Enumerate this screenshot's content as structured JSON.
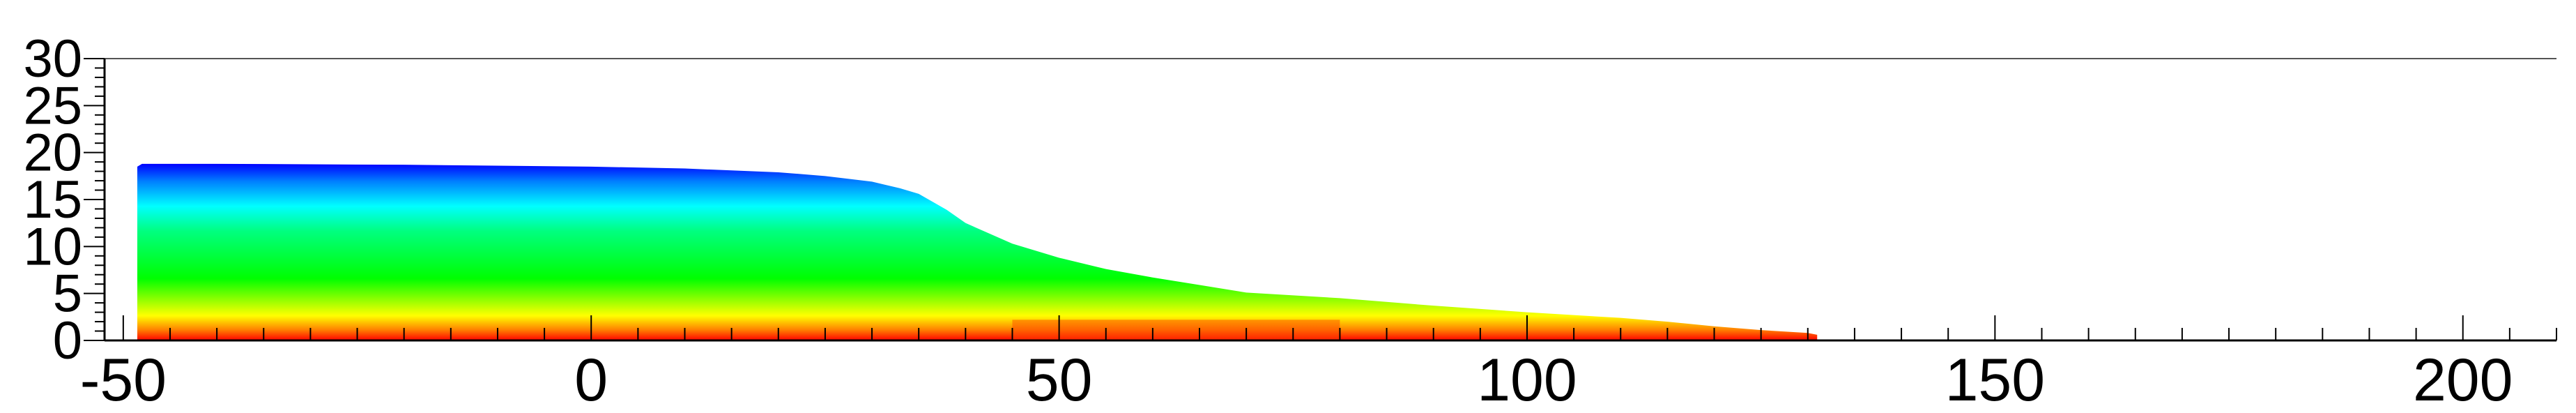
{
  "chart_data": {
    "type": "area",
    "title": "",
    "xlabel": "",
    "ylabel": "",
    "xlim": [
      -52,
      210
    ],
    "ylim": [
      0,
      30
    ],
    "x_ticks": [
      -50,
      0,
      50,
      100,
      150,
      200
    ],
    "x_tick_labels": [
      "-50",
      "0",
      "50",
      "100",
      "150",
      "200"
    ],
    "y_ticks": [
      0,
      5,
      10,
      15,
      20,
      25,
      30
    ],
    "y_tick_labels": [
      "0",
      "5",
      "10",
      "15",
      "20",
      "25",
      "30"
    ],
    "x_minor_step": 5,
    "y_minor_step": 1,
    "grid": false,
    "legend": "none",
    "colormap": [
      "#ff0000",
      "#ff8000",
      "#ffff00",
      "#00ff00",
      "#00ffff",
      "#0080ff",
      "#0000ff"
    ],
    "series": [
      {
        "x": [
          -48.5,
          -48,
          -40,
          -20,
          0,
          10,
          20,
          25,
          30,
          33,
          35,
          38,
          40,
          45,
          50,
          55,
          60,
          65,
          70,
          80,
          90,
          100,
          110,
          115,
          120,
          125,
          130,
          131
        ],
        "y": [
          18.5,
          18.8,
          18.8,
          18.7,
          18.5,
          18.3,
          17.9,
          17.5,
          16.9,
          16.2,
          15.6,
          13.9,
          12.5,
          10.3,
          8.8,
          7.6,
          6.7,
          5.9,
          5.1,
          4.5,
          3.7,
          3.0,
          2.4,
          2.0,
          1.5,
          1.1,
          0.8,
          0.6
        ]
      }
    ]
  }
}
